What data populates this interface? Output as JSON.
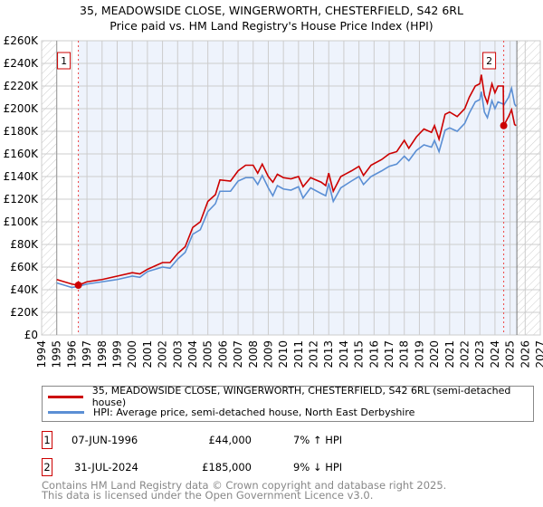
{
  "title": "35, MEADOWSIDE CLOSE, WINGERWORTH, CHESTERFIELD, S42 6RL",
  "subtitle": "Price paid vs. HM Land Registry's House Price Index (HPI)",
  "legend": {
    "property": "35, MEADOWSIDE CLOSE, WINGERWORTH, CHESTERFIELD, S42 6RL (semi-detached house)",
    "hpi": "HPI: Average price, semi-detached house, North East Derbyshire"
  },
  "sales": [
    {
      "num": "1",
      "date": "07-JUN-1996",
      "price": "£44,000",
      "hpi": "7% ↑ HPI"
    },
    {
      "num": "2",
      "date": "31-JUL-2024",
      "price": "£185,000",
      "hpi": "9% ↓ HPI"
    }
  ],
  "footer": [
    "Contains HM Land Registry data © Crown copyright and database right 2025.",
    "This data is licensed under the Open Government Licence v3.0."
  ],
  "colors": {
    "property": "#cc0000",
    "hpi": "#5b8fd4",
    "shade": "#eef3fc"
  },
  "chart_data": {
    "type": "line",
    "xlim": [
      1994,
      2027
    ],
    "ylim": [
      0,
      260000
    ],
    "yticks": [
      "£0",
      "£20K",
      "£40K",
      "£60K",
      "£80K",
      "£100K",
      "£120K",
      "£140K",
      "£160K",
      "£180K",
      "£200K",
      "£220K",
      "£240K",
      "£260K"
    ],
    "xticks": [
      "1994",
      "1995",
      "1996",
      "1997",
      "1998",
      "1999",
      "2000",
      "2001",
      "2002",
      "2003",
      "2004",
      "2005",
      "2006",
      "2007",
      "2008",
      "2009",
      "2010",
      "2011",
      "2012",
      "2013",
      "2014",
      "2015",
      "2016",
      "2017",
      "2018",
      "2019",
      "2020",
      "2021",
      "2022",
      "2023",
      "2024",
      "2025",
      "2026",
      "2027"
    ],
    "hatched_before": 1995,
    "hatched_after": 2025.45,
    "sale_points": [
      {
        "label": "1",
        "x": 1996.43,
        "y": 44000
      },
      {
        "label": "2",
        "x": 2024.58,
        "y": 185000
      }
    ],
    "x": [
      1995.0,
      1995.5,
      1996.0,
      1996.43,
      1997.0,
      1998.0,
      1999.0,
      2000.0,
      2000.5,
      2001.0,
      2001.5,
      2002.0,
      2002.5,
      2003.0,
      2003.5,
      2004.0,
      2004.5,
      2005.0,
      2005.5,
      2005.8,
      2006.5,
      2007.0,
      2007.5,
      2008.0,
      2008.3,
      2008.6,
      2009.0,
      2009.3,
      2009.6,
      2010.0,
      2010.5,
      2011.0,
      2011.3,
      2011.8,
      2012.5,
      2012.8,
      2013.0,
      2013.3,
      2013.8,
      2014.5,
      2015.0,
      2015.3,
      2015.8,
      2016.5,
      2017.0,
      2017.5,
      2018.0,
      2018.3,
      2018.8,
      2019.3,
      2019.8,
      2020.0,
      2020.3,
      2020.7,
      2021.0,
      2021.5,
      2022.0,
      2022.3,
      2022.7,
      2023.0,
      2023.1,
      2023.3,
      2023.5,
      2023.8,
      2024.0,
      2024.2,
      2024.55,
      2024.58,
      2024.9,
      2025.1,
      2025.3,
      2025.4
    ],
    "series": [
      {
        "name": "35, MEADOWSIDE CLOSE, WINGERWORTH, CHESTERFIELD, S42 6RL (semi-detached house)",
        "values": [
          49,
          47,
          45,
          44,
          47,
          49,
          52,
          55,
          54,
          58,
          61,
          64,
          64,
          72,
          78,
          95,
          100,
          118,
          124,
          137,
          136,
          145,
          150,
          150,
          143,
          151,
          140,
          135,
          142,
          139,
          138,
          140,
          131,
          139,
          135,
          132,
          143,
          127,
          140,
          145,
          149,
          141,
          150,
          155,
          160,
          162,
          172,
          165,
          175,
          182,
          179,
          185,
          173,
          195,
          197,
          193,
          200,
          210,
          220,
          222,
          230,
          212,
          205,
          222,
          214,
          220,
          220,
          185,
          193,
          199,
          186,
          185
        ],
        "unit": 1000
      },
      {
        "name": "HPI: Average price, semi-detached house, North East Derbyshire",
        "values": [
          46,
          44,
          42,
          43,
          45,
          47,
          49,
          52,
          51,
          56,
          58,
          60,
          59,
          67,
          73,
          89,
          93,
          109,
          116,
          127,
          127,
          136,
          139,
          139,
          133,
          141,
          130,
          123,
          132,
          129,
          128,
          131,
          121,
          130,
          125,
          123,
          134,
          118,
          130,
          136,
          140,
          133,
          140,
          145,
          149,
          151,
          158,
          154,
          163,
          168,
          166,
          172,
          162,
          181,
          183,
          180,
          187,
          196,
          206,
          208,
          215,
          197,
          192,
          207,
          200,
          206,
          204,
          203,
          210,
          218,
          204,
          202
        ],
        "unit": 1000
      }
    ]
  }
}
